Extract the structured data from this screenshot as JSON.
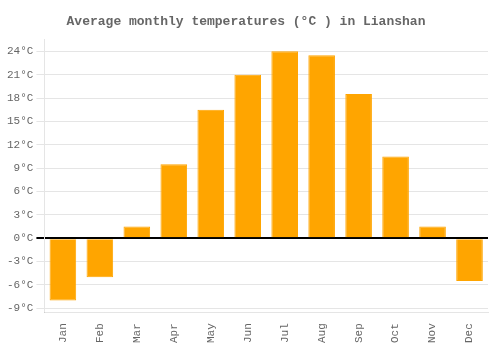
{
  "chart_data": {
    "type": "bar",
    "title": "Average monthly temperatures (°C ) in Lianshan",
    "categories": [
      "Jan",
      "Feb",
      "Mar",
      "Apr",
      "May",
      "Jun",
      "Jul",
      "Aug",
      "Sep",
      "Oct",
      "Nov",
      "Dec"
    ],
    "values": [
      -8.0,
      -5.0,
      1.5,
      9.5,
      16.5,
      21.0,
      24.0,
      23.5,
      18.5,
      10.5,
      1.5,
      -5.5
    ],
    "color": "#FFA500",
    "ylim": [
      -9.5,
      25.5
    ],
    "yticks": [
      {
        "value": -9,
        "label": "-9°C"
      },
      {
        "value": -6,
        "label": "-6°C"
      },
      {
        "value": -3,
        "label": "-3°C"
      },
      {
        "value": 0,
        "label": "0°C"
      },
      {
        "value": 3,
        "label": "3°C"
      },
      {
        "value": 6,
        "label": "6°C"
      },
      {
        "value": 9,
        "label": "9°C"
      },
      {
        "value": 12,
        "label": "12°C"
      },
      {
        "value": 15,
        "label": "15°C"
      },
      {
        "value": 18,
        "label": "18°C"
      },
      {
        "value": 21,
        "label": "21°C"
      },
      {
        "value": 24,
        "label": "24°C"
      }
    ],
    "grid": true
  }
}
